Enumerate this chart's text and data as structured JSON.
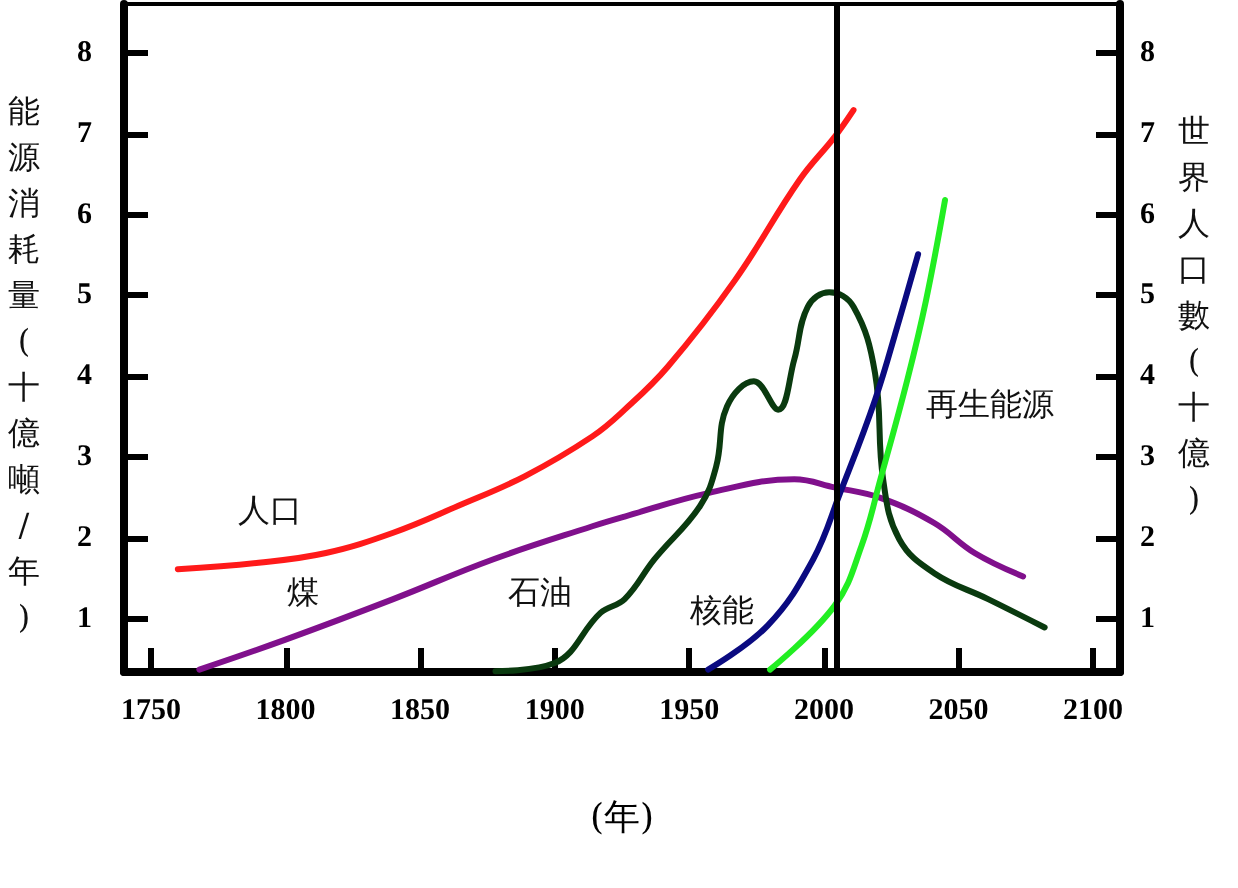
{
  "chart_data": {
    "type": "line",
    "xlabel": "(年)",
    "ylabel": "能源消耗量(十億噸/年)",
    "y2label": "世界人口數(十億)",
    "xlim": [
      1740,
      2110
    ],
    "xticks": [
      1750,
      1800,
      1850,
      1900,
      1950,
      2000,
      2050,
      2100
    ],
    "ylim": [
      0.35,
      8.6
    ],
    "yticks": [
      1,
      2,
      3,
      4,
      5,
      6,
      7,
      8
    ],
    "y2lim": [
      0.35,
      8.6
    ],
    "y2ticks": [
      1,
      2,
      3,
      4,
      5,
      6,
      7,
      8
    ],
    "legend": false,
    "line_style": "solid",
    "ref_lines": [
      {
        "axis": "x",
        "value": 2005,
        "color": "#000000"
      }
    ],
    "series": [
      {
        "name": "人口",
        "color": "#ff1a1a",
        "axis": "y2",
        "x": [
          1760,
          1790,
          1815,
          1840,
          1864,
          1889,
          1914,
          1926,
          1942,
          1967,
          1991,
          2004,
          2011
        ],
        "values": [
          1.62,
          1.7,
          1.82,
          2.07,
          2.4,
          2.77,
          3.26,
          3.59,
          4.12,
          5.19,
          6.43,
          6.96,
          7.29
        ]
      },
      {
        "name": "煤",
        "color": "#80108c",
        "x": [
          1768,
          1800,
          1840,
          1877,
          1914,
          1926,
          1957,
          1989,
          2004,
          2021,
          2041,
          2056,
          2074
        ],
        "values": [
          0.38,
          0.75,
          1.25,
          1.74,
          2.15,
          2.27,
          2.56,
          2.73,
          2.63,
          2.5,
          2.19,
          1.82,
          1.53
        ]
      },
      {
        "name": "石油",
        "color": "#0a3a0f",
        "x": [
          1878,
          1900,
          1917,
          1926,
          1937,
          1954,
          1960,
          1964,
          1974,
          1983,
          1989,
          1994,
          2002,
          2011,
          2019,
          2022,
          2028,
          2041,
          2061,
          2082
        ],
        "values": [
          0.36,
          0.46,
          1.08,
          1.25,
          1.74,
          2.4,
          2.89,
          3.63,
          3.94,
          3.59,
          4.21,
          4.86,
          5.04,
          4.86,
          4.04,
          2.73,
          1.99,
          1.57,
          1.25,
          0.9
        ]
      },
      {
        "name": "核能",
        "color": "#0a0a80",
        "x": [
          1957,
          1979,
          1996,
          2006,
          2019,
          2028,
          2035
        ],
        "values": [
          0.38,
          0.92,
          1.74,
          2.56,
          3.71,
          4.7,
          5.51
        ]
      },
      {
        "name": "再生能源",
        "color": "#22ee22",
        "x": [
          1980,
          2004,
          2014,
          2021,
          2031,
          2038,
          2045
        ],
        "values": [
          0.38,
          1.17,
          1.91,
          2.73,
          3.96,
          4.95,
          6.18
        ]
      }
    ]
  }
}
